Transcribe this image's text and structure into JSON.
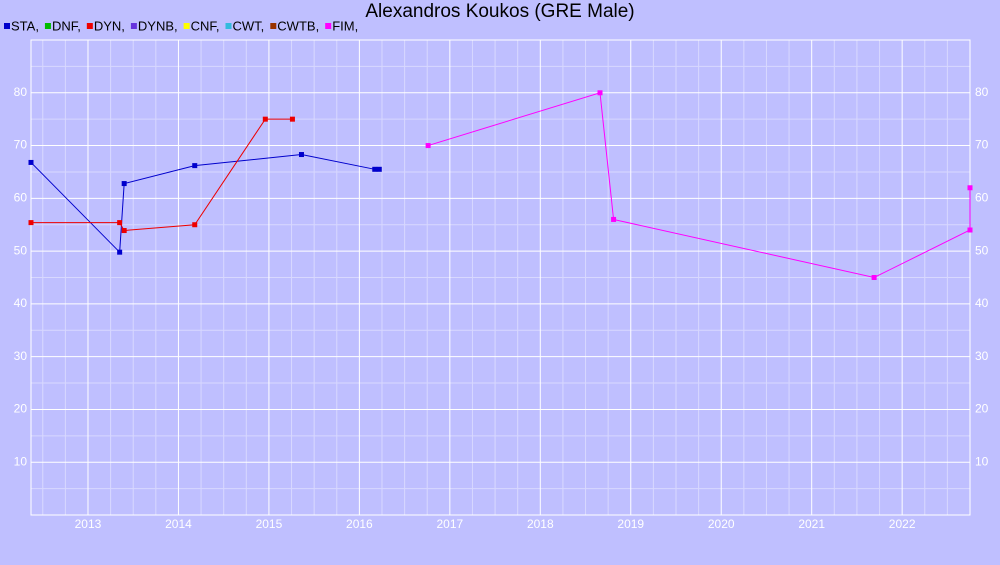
{
  "chart_data": {
    "type": "line",
    "title": "Alexandros Koukos (GRE Male)",
    "xlim": [
      2012.37,
      2022.75
    ],
    "ylim": [
      0,
      90
    ],
    "xticks": [
      2013,
      2014,
      2015,
      2016,
      2017,
      2018,
      2019,
      2020,
      2021,
      2022
    ],
    "yticks": [
      10,
      20,
      30,
      40,
      50,
      60,
      70,
      80
    ],
    "grid": true,
    "series": [
      {
        "name": "STA,",
        "color": "#0000cc",
        "x": [
          2012.37,
          2013.35,
          2013.4,
          2014.18,
          2015.36,
          2016.17,
          2016.22
        ],
        "values": [
          66.8,
          49.8,
          62.8,
          66.2,
          68.3,
          65.5,
          65.5
        ]
      },
      {
        "name": "DNF,",
        "color": "#00bb00",
        "x": [],
        "values": []
      },
      {
        "name": "DYN,",
        "color": "#ee0000",
        "x": [
          2012.37,
          2013.35,
          2013.4,
          2014.18,
          2014.96,
          2015.26
        ],
        "values": [
          55.4,
          55.4,
          53.9,
          55.0,
          75.0,
          75.0
        ]
      },
      {
        "name": "DYNB,",
        "color": "#6633dd",
        "x": [],
        "values": []
      },
      {
        "name": "CNF,",
        "color": "#ffff00",
        "x": [],
        "values": []
      },
      {
        "name": "CWT,",
        "color": "#33bbdd",
        "x": [],
        "values": []
      },
      {
        "name": "CWTB,",
        "color": "#993300",
        "x": [],
        "values": []
      },
      {
        "name": "FIM,",
        "color": "#ff00ff",
        "x": [
          2016.76,
          2018.66,
          2018.81,
          2021.69,
          2022.75,
          2022.75
        ],
        "values": [
          70,
          80,
          56,
          45,
          54,
          62
        ]
      }
    ]
  }
}
